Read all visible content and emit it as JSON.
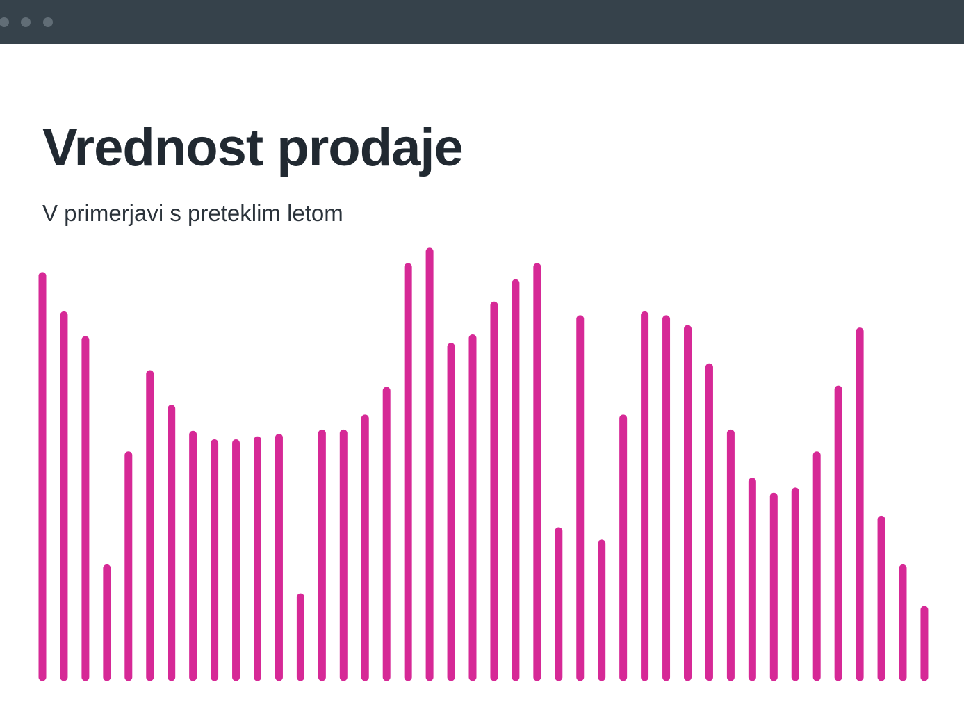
{
  "window": {
    "controls": [
      "window-dot",
      "window-dot",
      "window-dot"
    ]
  },
  "header": {
    "title": "Vrednost prodaje",
    "subtitle": "V primerjavi s preteklim letom"
  },
  "colors": {
    "titlebar": "#36424b",
    "bar": "#d62996",
    "title_text": "#212931"
  },
  "chart_data": {
    "type": "bar",
    "title": "Vrednost prodaje",
    "subtitle": "V primerjavi s preteklim letom",
    "xlabel": "",
    "ylabel": "",
    "ylim": [
      0,
      100
    ],
    "grid": false,
    "legend": "none",
    "series": [
      {
        "values": [
          94,
          84.8,
          79,
          25.5,
          52,
          71,
          62.9,
          56.8,
          54.8,
          54.8,
          55.5,
          56.1,
          18.7,
          57.1,
          57.1,
          60.6,
          67.1,
          96.1,
          99.7,
          77.4,
          79.4,
          87.1,
          92.3,
          96.1,
          34.2,
          83.9,
          31.3,
          60.6,
          84.8,
          83.9,
          81.6,
          72.6,
          57.1,
          45.8,
          42.3,
          43.5,
          52,
          67.4,
          81,
          36.9,
          25.5,
          15.8
        ]
      }
    ]
  }
}
